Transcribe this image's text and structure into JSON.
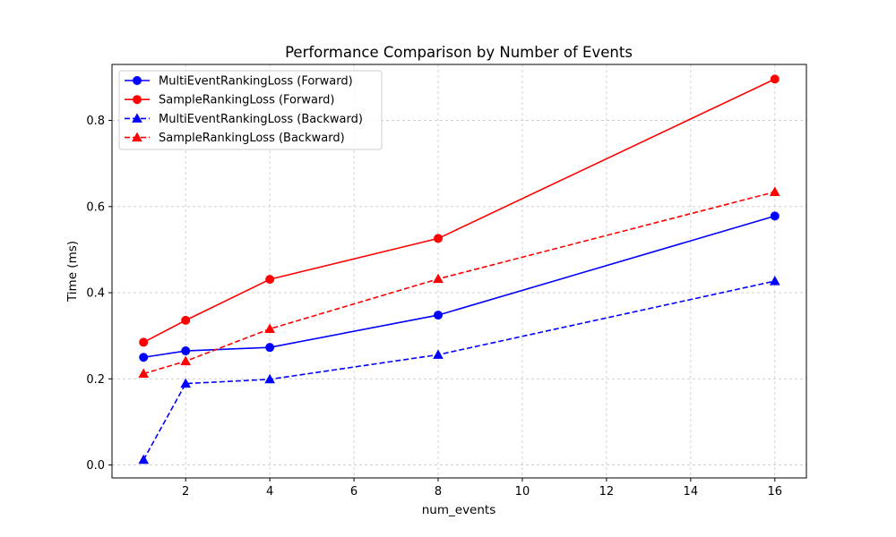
{
  "chart_data": {
    "type": "line",
    "title": "Performance Comparison by Number of Events",
    "xlabel": "num_events",
    "ylabel": "Time (ms)",
    "xlim": [
      0.25,
      16.75
    ],
    "ylim": [
      -0.03,
      0.93
    ],
    "xticks": [
      2,
      4,
      6,
      8,
      10,
      12,
      14,
      16
    ],
    "yticks": [
      0.0,
      0.2,
      0.4,
      0.6,
      0.8
    ],
    "ytick_labels": [
      "0.0",
      "0.2",
      "0.4",
      "0.6",
      "0.8"
    ],
    "grid": true,
    "legend_position": "top-left",
    "x": [
      1,
      2,
      4,
      8,
      16
    ],
    "series": [
      {
        "name": "MultiEventRankingLoss (Forward)",
        "color": "#0000ff",
        "linestyle": "solid",
        "marker": "circle",
        "values": [
          0.25,
          0.265,
          0.273,
          0.348,
          0.578
        ]
      },
      {
        "name": "SampleRankingLoss (Forward)",
        "color": "#ff0000",
        "linestyle": "solid",
        "marker": "circle",
        "values": [
          0.285,
          0.336,
          0.431,
          0.526,
          0.896
        ]
      },
      {
        "name": "MultiEventRankingLoss (Backward)",
        "color": "#0000ff",
        "linestyle": "dashed",
        "marker": "triangle",
        "values": [
          0.012,
          0.189,
          0.199,
          0.256,
          0.427
        ]
      },
      {
        "name": "SampleRankingLoss (Backward)",
        "color": "#ff0000",
        "linestyle": "dashed",
        "marker": "triangle",
        "values": [
          0.212,
          0.241,
          0.316,
          0.432,
          0.634
        ]
      }
    ]
  }
}
